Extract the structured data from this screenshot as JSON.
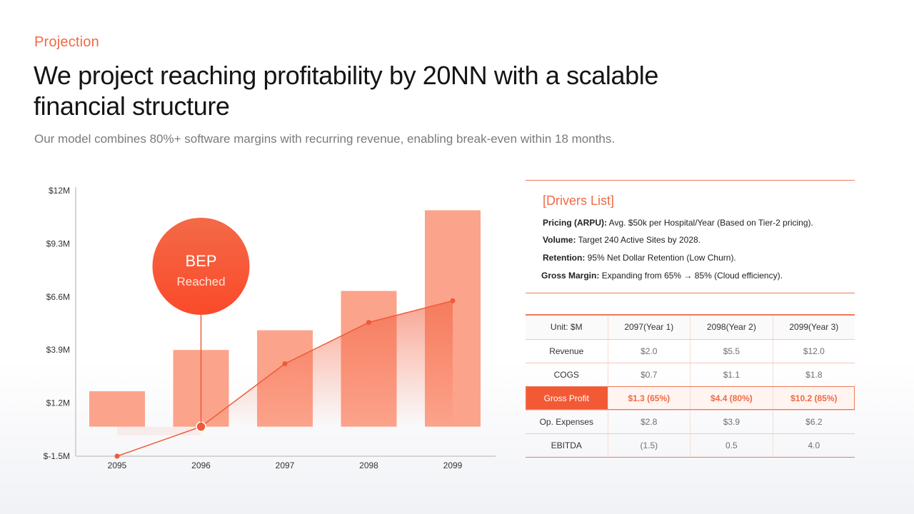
{
  "header": {
    "eyebrow": "Projection",
    "title": "We project reaching profitability by 20NN with a scalable financial structure",
    "subtitle": "Our model combines 80%+ software margins with recurring revenue, enabling break-even within 18 months."
  },
  "chart_data": {
    "type": "bar",
    "categories": [
      "2095",
      "2096",
      "2097",
      "2098",
      "2099"
    ],
    "series": [
      {
        "type": "bar",
        "values": [
          1.8,
          3.9,
          4.9,
          6.9,
          11.0
        ]
      },
      {
        "type": "line",
        "values": [
          -1.5,
          0,
          3.2,
          5.3,
          6.4
        ]
      }
    ],
    "yticks": [
      "$12M",
      "$9.3M",
      "$6.6M",
      "$3.9M",
      "$1.2M",
      "$-1.5M"
    ],
    "ytick_values": [
      12,
      9.3,
      6.6,
      3.9,
      1.2,
      -1.5
    ],
    "ylim": [
      -1.5,
      12
    ],
    "annotation": {
      "title": "BEP",
      "subtitle": "Reached",
      "category": "2096"
    },
    "colors": {
      "bar": "#fca38b",
      "line": "#f05a38",
      "bubble_top": "#f36a47",
      "bubble_bottom": "#fb4a2a",
      "axis": "#c9c9c9"
    }
  },
  "drivers": {
    "title": "[Drivers List]",
    "items": [
      {
        "label": "Pricing (ARPU):",
        "text": "Avg. $50k per Hospital/Year (Based on Tier-2 pricing)."
      },
      {
        "label": "Volume:",
        "text": "Target 240 Active Sites by 2028."
      },
      {
        "label": "Retention:",
        "text": "95% Net Dollar Retention (Low Churn)."
      },
      {
        "label": "Gross Margin:",
        "text": "Expanding from 65% → 85% (Cloud efficiency)."
      }
    ]
  },
  "table": {
    "headers": [
      "Unit: $M",
      "2097(Year 1)",
      "2098(Year 2)",
      "2099(Year 3)"
    ],
    "rows": [
      [
        "Revenue",
        "$2.0",
        "$5.5",
        "$12.0"
      ],
      [
        "COGS",
        "$0.7",
        "$1.1",
        "$1.8"
      ],
      [
        "Gross Profit",
        "$1.3 (65%)",
        "$4.4 (80%)",
        "$10.2 (85%)"
      ],
      [
        "Op. Expenses",
        "$2.8",
        "$3.9",
        "$6.2"
      ],
      [
        "EBITDA",
        "(1.5)",
        "0.5",
        "4.0"
      ]
    ],
    "highlight_row": 2
  }
}
